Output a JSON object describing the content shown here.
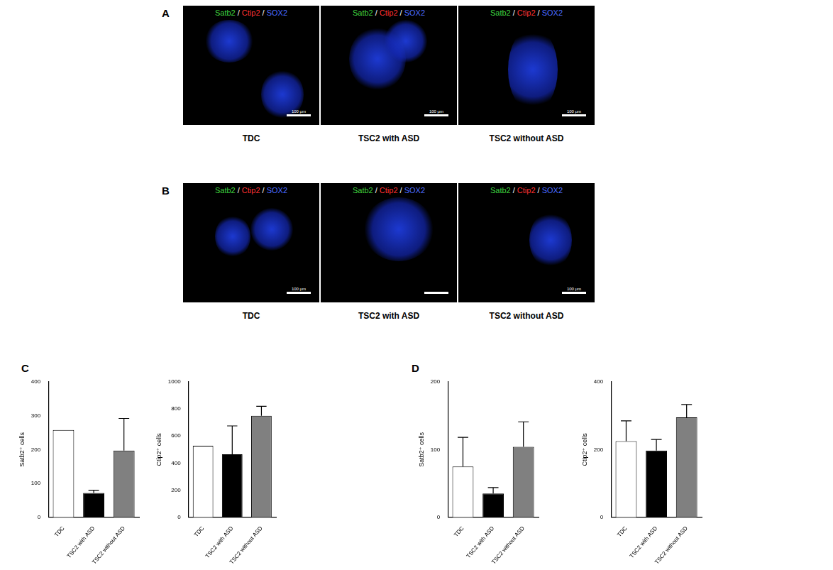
{
  "figure": {
    "image_panels": [
      {
        "label": "A",
        "channel_labels": [
          "Satb2",
          "Ctip2",
          "SOX2"
        ],
        "separator": " / ",
        "colors": [
          "#3fd23f",
          "#ff3030",
          "#4a6bff"
        ],
        "captions": [
          "TDC",
          "TSC2 with ASD",
          "TSC2 without ASD"
        ],
        "scale_bars": [
          "100 μm",
          "100 μm",
          "100 μm"
        ]
      },
      {
        "label": "B",
        "channel_labels": [
          "Satb2",
          "Ctip2",
          "SOX2"
        ],
        "separator": " / ",
        "colors": [
          "#3fd23f",
          "#ff3030",
          "#4a6bff"
        ],
        "captions": [
          "TDC",
          "TSC2 with ASD",
          "TSC2 without ASD"
        ],
        "scale_bars": [
          "100 μm",
          null,
          "100 μm"
        ]
      }
    ],
    "chart_panel_labels": [
      "C",
      "D"
    ]
  },
  "chart_data": [
    {
      "type": "bar",
      "y_label": "Satb2⁺ cells",
      "categories": [
        "TDC",
        "TSC2 with ASD",
        "TSC2 without ASD"
      ],
      "values": [
        258,
        72,
        197
      ],
      "errors": [
        null,
        8,
        95
      ],
      "colors": [
        "#ffffff",
        "#000000",
        "#808080"
      ],
      "ylim": [
        0,
        400
      ],
      "yticks": [
        0,
        100,
        200,
        300,
        400
      ],
      "grid": false
    },
    {
      "type": "bar",
      "y_label": "Ctip2⁺ cells",
      "categories": [
        "TDC",
        "TSC2 with ASD",
        "TSC2 without ASD"
      ],
      "values": [
        528,
        465,
        750
      ],
      "errors": [
        null,
        210,
        70
      ],
      "colors": [
        "#ffffff",
        "#000000",
        "#808080"
      ],
      "ylim": [
        0,
        1000
      ],
      "yticks": [
        0,
        200,
        400,
        600,
        800,
        1000
      ],
      "grid": false
    },
    {
      "type": "bar",
      "y_label": "Satb2⁺ cells",
      "categories": [
        "TDC",
        "TSC2 with ASD",
        "TSC2 without ASD"
      ],
      "values": [
        75,
        35,
        104
      ],
      "errors": [
        43,
        9,
        37
      ],
      "colors": [
        "#ffffff",
        "#000000",
        "#808080"
      ],
      "ylim": [
        0,
        200
      ],
      "yticks": [
        0,
        100,
        200
      ],
      "grid": false
    },
    {
      "type": "bar",
      "y_label": "Ctip2⁺ cells",
      "categories": [
        "TDC",
        "TSC2 with ASD",
        "TSC2 without ASD"
      ],
      "values": [
        225,
        197,
        295
      ],
      "errors": [
        60,
        33,
        38
      ],
      "colors": [
        "#ffffff",
        "#000000",
        "#808080"
      ],
      "ylim": [
        0,
        400
      ],
      "yticks": [
        0,
        200,
        400
      ],
      "grid": false
    }
  ]
}
